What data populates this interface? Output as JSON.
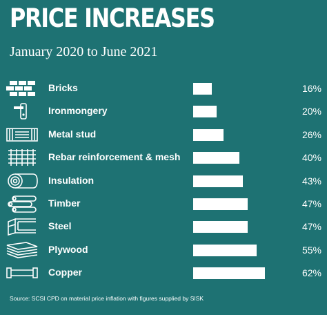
{
  "header": {
    "title": "PRICE INCREASES",
    "subtitle": "January 2020 to June 2021"
  },
  "chart_data": {
    "type": "bar",
    "orientation": "horizontal",
    "title": "PRICE INCREASES",
    "subtitle": "January 2020 to June 2021",
    "xlabel": "",
    "ylabel": "",
    "unit": "%",
    "grid": false,
    "legend": "none",
    "categories": [
      "Bricks",
      "Ironmongery",
      "Metal stud",
      "Rebar reinforcement & mesh",
      "Insulation",
      "Timber",
      "Steel",
      "Plywood",
      "Copper"
    ],
    "values": [
      16,
      20,
      26,
      40,
      43,
      47,
      47,
      55,
      62
    ],
    "labels": [
      "16%",
      "20%",
      "26%",
      "40%",
      "43%",
      "47%",
      "47%",
      "55%",
      "62%"
    ],
    "icons": [
      "bricks-icon",
      "door-handle-icon",
      "metal-stud-icon",
      "rebar-mesh-icon",
      "insulation-roll-icon",
      "timber-logs-icon",
      "steel-beam-icon",
      "plywood-sheets-icon",
      "copper-pipe-icon"
    ],
    "bar_color": "#ffffff",
    "background_color": "#1e7273"
  },
  "footer": {
    "source": "Source: SCSI CPD on material price inflation with figures supplied by SISK"
  }
}
